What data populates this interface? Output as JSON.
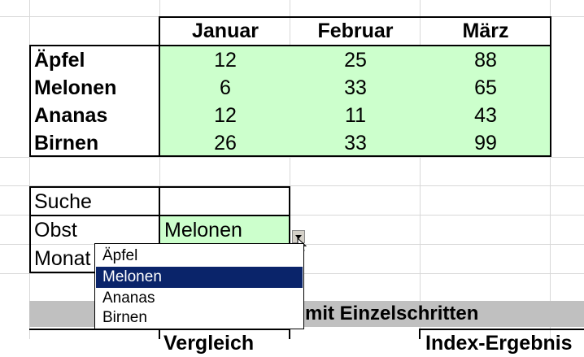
{
  "table": {
    "columns": [
      "Januar",
      "Februar",
      "März"
    ],
    "rows": [
      {
        "label": "Äpfel",
        "values": [
          "12",
          "25",
          "88"
        ]
      },
      {
        "label": "Melonen",
        "values": [
          "6",
          "33",
          "65"
        ]
      },
      {
        "label": "Ananas",
        "values": [
          "12",
          "11",
          "43"
        ]
      },
      {
        "label": "Birnen",
        "values": [
          "26",
          "33",
          "99"
        ]
      }
    ]
  },
  "lookup": {
    "search_label": "Suche",
    "search_value": "",
    "fruit_label": "Obst",
    "fruit_value": "Melonen",
    "month_label": "Monat"
  },
  "dropdown": {
    "options": [
      "Äpfel",
      "Melonen",
      "Ananas",
      "Birnen"
    ],
    "selected": "Melonen"
  },
  "section": {
    "banner_text": "mit Einzelschritten",
    "partial_header_1": "Vergleich",
    "partial_header_2": "Index-Ergebnis"
  },
  "colors": {
    "data_fill": "#ccffcc",
    "banner_fill": "#c0c0c0",
    "selection": "#0a246a"
  }
}
